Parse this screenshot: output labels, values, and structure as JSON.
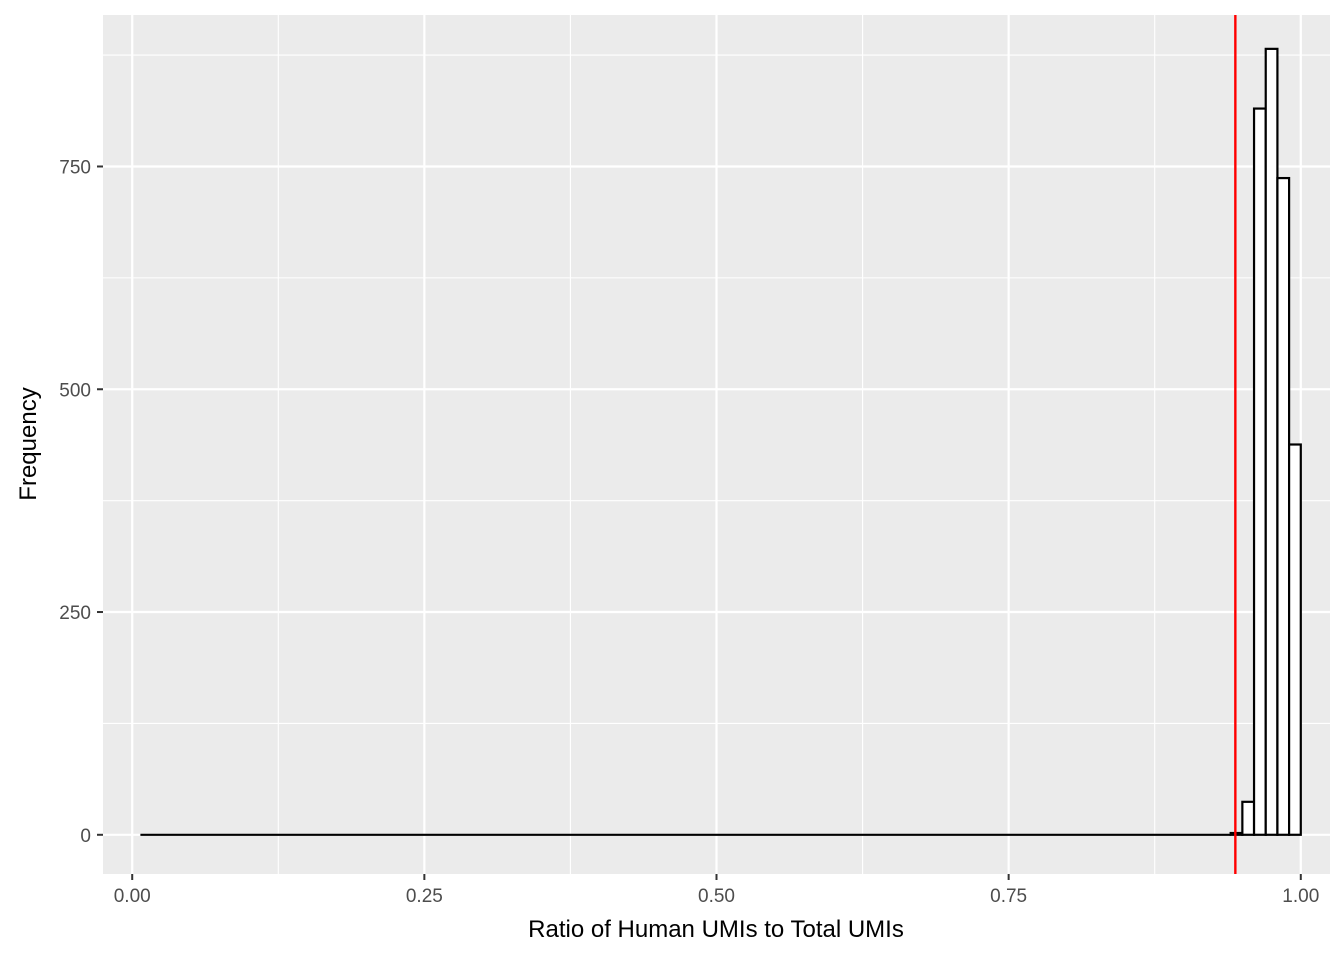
{
  "chart_data": {
    "type": "bar",
    "subtype": "histogram",
    "title": "",
    "xlabel": "Ratio of Human UMIs to Total UMIs",
    "ylabel": "Frequency",
    "xlim": [
      -0.025,
      1.025
    ],
    "ylim": [
      -44,
      920
    ],
    "x_ticks": [
      0.0,
      0.25,
      0.5,
      0.75,
      1.0
    ],
    "x_tick_labels": [
      "0.00",
      "0.25",
      "0.50",
      "0.75",
      "1.00"
    ],
    "y_ticks": [
      0,
      250,
      500,
      750
    ],
    "y_tick_labels": [
      "0",
      "250",
      "500",
      "750"
    ],
    "bin_width": 0.01,
    "bins_start": 0.0,
    "bins_end": 1.0,
    "bars": [
      {
        "x_min": 0.94,
        "x_max": 0.95,
        "value": 2
      },
      {
        "x_min": 0.95,
        "x_max": 0.96,
        "value": 37
      },
      {
        "x_min": 0.96,
        "x_max": 0.97,
        "value": 815
      },
      {
        "x_min": 0.97,
        "x_max": 0.98,
        "value": 882
      },
      {
        "x_min": 0.98,
        "x_max": 0.99,
        "value": 737
      },
      {
        "x_min": 0.99,
        "x_max": 1.0,
        "value": 438
      }
    ],
    "vline": {
      "x": 0.944,
      "color": "#ff0000"
    },
    "grid": true,
    "legend": "none",
    "colors": {
      "panel_background": "#ebebeb",
      "grid": "#ffffff",
      "bar_outline": "#000000",
      "bar_fill": "#ffffff",
      "vline": "#ff0000"
    }
  }
}
